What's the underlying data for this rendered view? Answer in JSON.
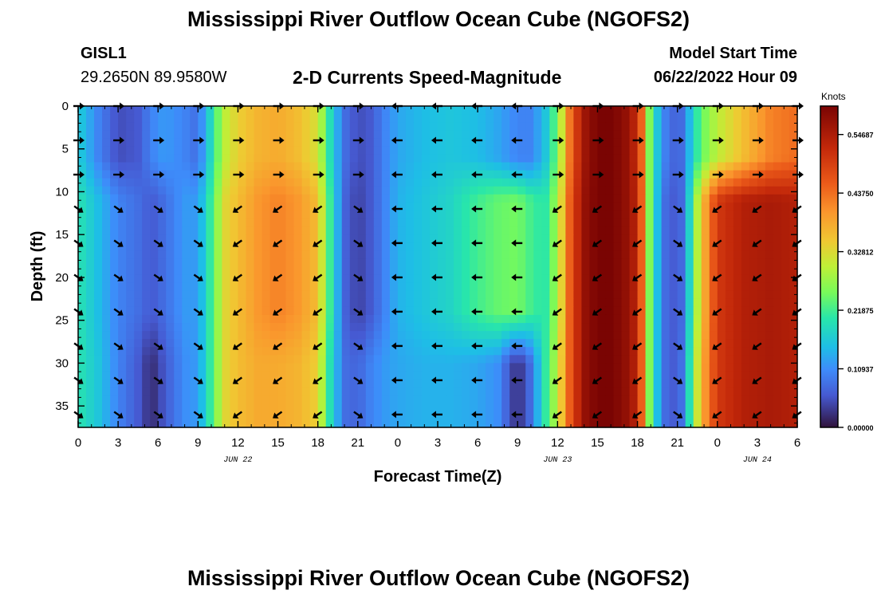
{
  "header": {
    "title": "Mississippi River Outflow Ocean Cube (NGOFS2)",
    "station_id": "GISL1",
    "station_coords": "29.2650N  89.9580W",
    "subtitle": "2-D Currents Speed-Magnitude",
    "model_start_label": "Model Start Time",
    "model_start_value": "06/22/2022 Hour 09"
  },
  "footer": {
    "title_repeat": "Mississippi River Outflow Ocean Cube (NGOFS2)"
  },
  "chart_data": {
    "type": "heatmap",
    "xlabel": "Forecast Time(Z)",
    "ylabel": "Depth (ft)",
    "x_tick_labels": [
      "0",
      "3",
      "6",
      "9",
      "12",
      "15",
      "18",
      "21",
      "0",
      "3",
      "6",
      "9",
      "12",
      "15",
      "18",
      "21",
      "0",
      "3",
      "6"
    ],
    "x_hours": [
      0,
      3,
      6,
      9,
      12,
      15,
      18,
      21,
      24,
      27,
      30,
      33,
      36,
      39,
      42,
      45,
      48,
      51,
      54
    ],
    "date_labels": [
      {
        "hour": 12,
        "text": "JUN 22"
      },
      {
        "hour": 36,
        "text": "JUN 23"
      },
      {
        "hour": 51,
        "text": "JUN 24"
      }
    ],
    "y_ticks": [
      0,
      5,
      10,
      15,
      20,
      25,
      30,
      35
    ],
    "ylim": [
      0,
      37.5
    ],
    "xlim": [
      0,
      54
    ],
    "colorbar": {
      "units": "Knots",
      "range": [
        0,
        0.6
      ],
      "tick_values": [
        0.0,
        0.10937,
        0.21875,
        0.32812,
        0.4375,
        0.54687
      ],
      "tick_labels": [
        "0.00000",
        "0.10937",
        "0.21875",
        "0.32812",
        "0.43750",
        "0.54687"
      ]
    },
    "arrow_hours": [
      0,
      3,
      6,
      9,
      12,
      15,
      18,
      21,
      24,
      27,
      30,
      33,
      36,
      39,
      42,
      45,
      48,
      51,
      54
    ],
    "arrow_depths": [
      0,
      4,
      8,
      12,
      16,
      20,
      24,
      28,
      32,
      36
    ],
    "speed_profile": {
      "hours": [
        0,
        1.5,
        3,
        4.5,
        5.5,
        6.5,
        8,
        9,
        10,
        11,
        12,
        13.5,
        15,
        16.5,
        18,
        19,
        20,
        21,
        22,
        23,
        24,
        26,
        28,
        30,
        31.5,
        33,
        34,
        35,
        36,
        37,
        38,
        39,
        40,
        41,
        42,
        42.5,
        43,
        44,
        44.8,
        45.5,
        46,
        46.8,
        48,
        50,
        52,
        54
      ],
      "surface": [
        0.17,
        0.1,
        0.05,
        0.06,
        0.1,
        0.12,
        0.1,
        0.08,
        0.19,
        0.3,
        0.34,
        0.37,
        0.38,
        0.36,
        0.32,
        0.18,
        0.08,
        0.05,
        0.06,
        0.1,
        0.13,
        0.15,
        0.16,
        0.15,
        0.13,
        0.1,
        0.1,
        0.15,
        0.25,
        0.45,
        0.56,
        0.6,
        0.6,
        0.58,
        0.52,
        0.4,
        0.22,
        0.1,
        0.07,
        0.08,
        0.16,
        0.24,
        0.3,
        0.36,
        0.42,
        0.44
      ],
      "subsurface": [
        0.2,
        0.15,
        0.1,
        0.08,
        0.06,
        0.08,
        0.12,
        0.12,
        0.22,
        0.33,
        0.36,
        0.4,
        0.42,
        0.4,
        0.36,
        0.2,
        0.07,
        0.04,
        0.06,
        0.1,
        0.14,
        0.16,
        0.18,
        0.22,
        0.24,
        0.25,
        0.22,
        0.2,
        0.28,
        0.47,
        0.57,
        0.6,
        0.6,
        0.58,
        0.53,
        0.4,
        0.22,
        0.08,
        0.06,
        0.08,
        0.2,
        0.35,
        0.5,
        0.54,
        0.55,
        0.54
      ],
      "bottom": [
        0.2,
        0.16,
        0.1,
        0.06,
        0.02,
        0.06,
        0.11,
        0.12,
        0.22,
        0.33,
        0.36,
        0.38,
        0.38,
        0.37,
        0.34,
        0.18,
        0.08,
        0.07,
        0.1,
        0.12,
        0.13,
        0.14,
        0.14,
        0.13,
        0.11,
        0.02,
        0.08,
        0.2,
        0.3,
        0.47,
        0.57,
        0.6,
        0.6,
        0.58,
        0.53,
        0.4,
        0.22,
        0.08,
        0.06,
        0.09,
        0.22,
        0.37,
        0.5,
        0.54,
        0.55,
        0.54
      ]
    }
  }
}
